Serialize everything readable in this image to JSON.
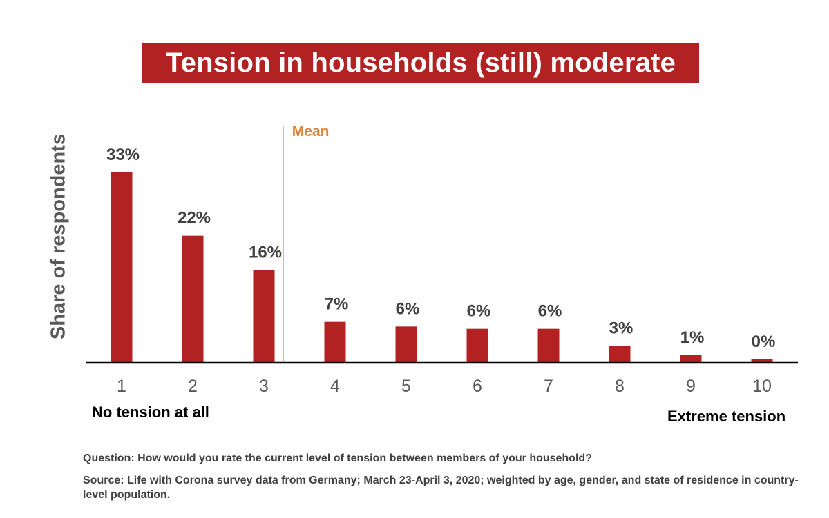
{
  "chart_data": {
    "type": "bar",
    "title": "Tension in households (still) moderate",
    "ylabel": "Share of respondents",
    "categories": [
      "1",
      "2",
      "3",
      "4",
      "5",
      "6",
      "7",
      "8",
      "9",
      "10"
    ],
    "values": [
      33,
      22,
      16,
      7,
      6,
      6,
      6,
      3,
      1,
      0
    ],
    "value_labels": [
      "33%",
      "22%",
      "16%",
      "7%",
      "6%",
      "6%",
      "6%",
      "3%",
      "1%",
      "0%"
    ],
    "bar_values_est": [
      33,
      22,
      16,
      7,
      6.2,
      5.8,
      5.8,
      2.8,
      1.2,
      0.5
    ],
    "ylim": [
      0,
      36
    ],
    "grid": false,
    "mean_line": {
      "label": "Mean",
      "x": 3.27
    },
    "x_end_labels": {
      "low": "No tension at all",
      "high": "Extreme tension"
    },
    "colors": {
      "bar": "#b22222",
      "mean": "#e0843a",
      "title_bg": "#b22222"
    }
  },
  "footnotes": {
    "question": "Question: How would you rate the current level of tension between members of your household?",
    "source": "Source: Life with Corona survey data from Germany; March 23-April 3, 2020; weighted by age, gender, and state of residence in country-level population."
  }
}
